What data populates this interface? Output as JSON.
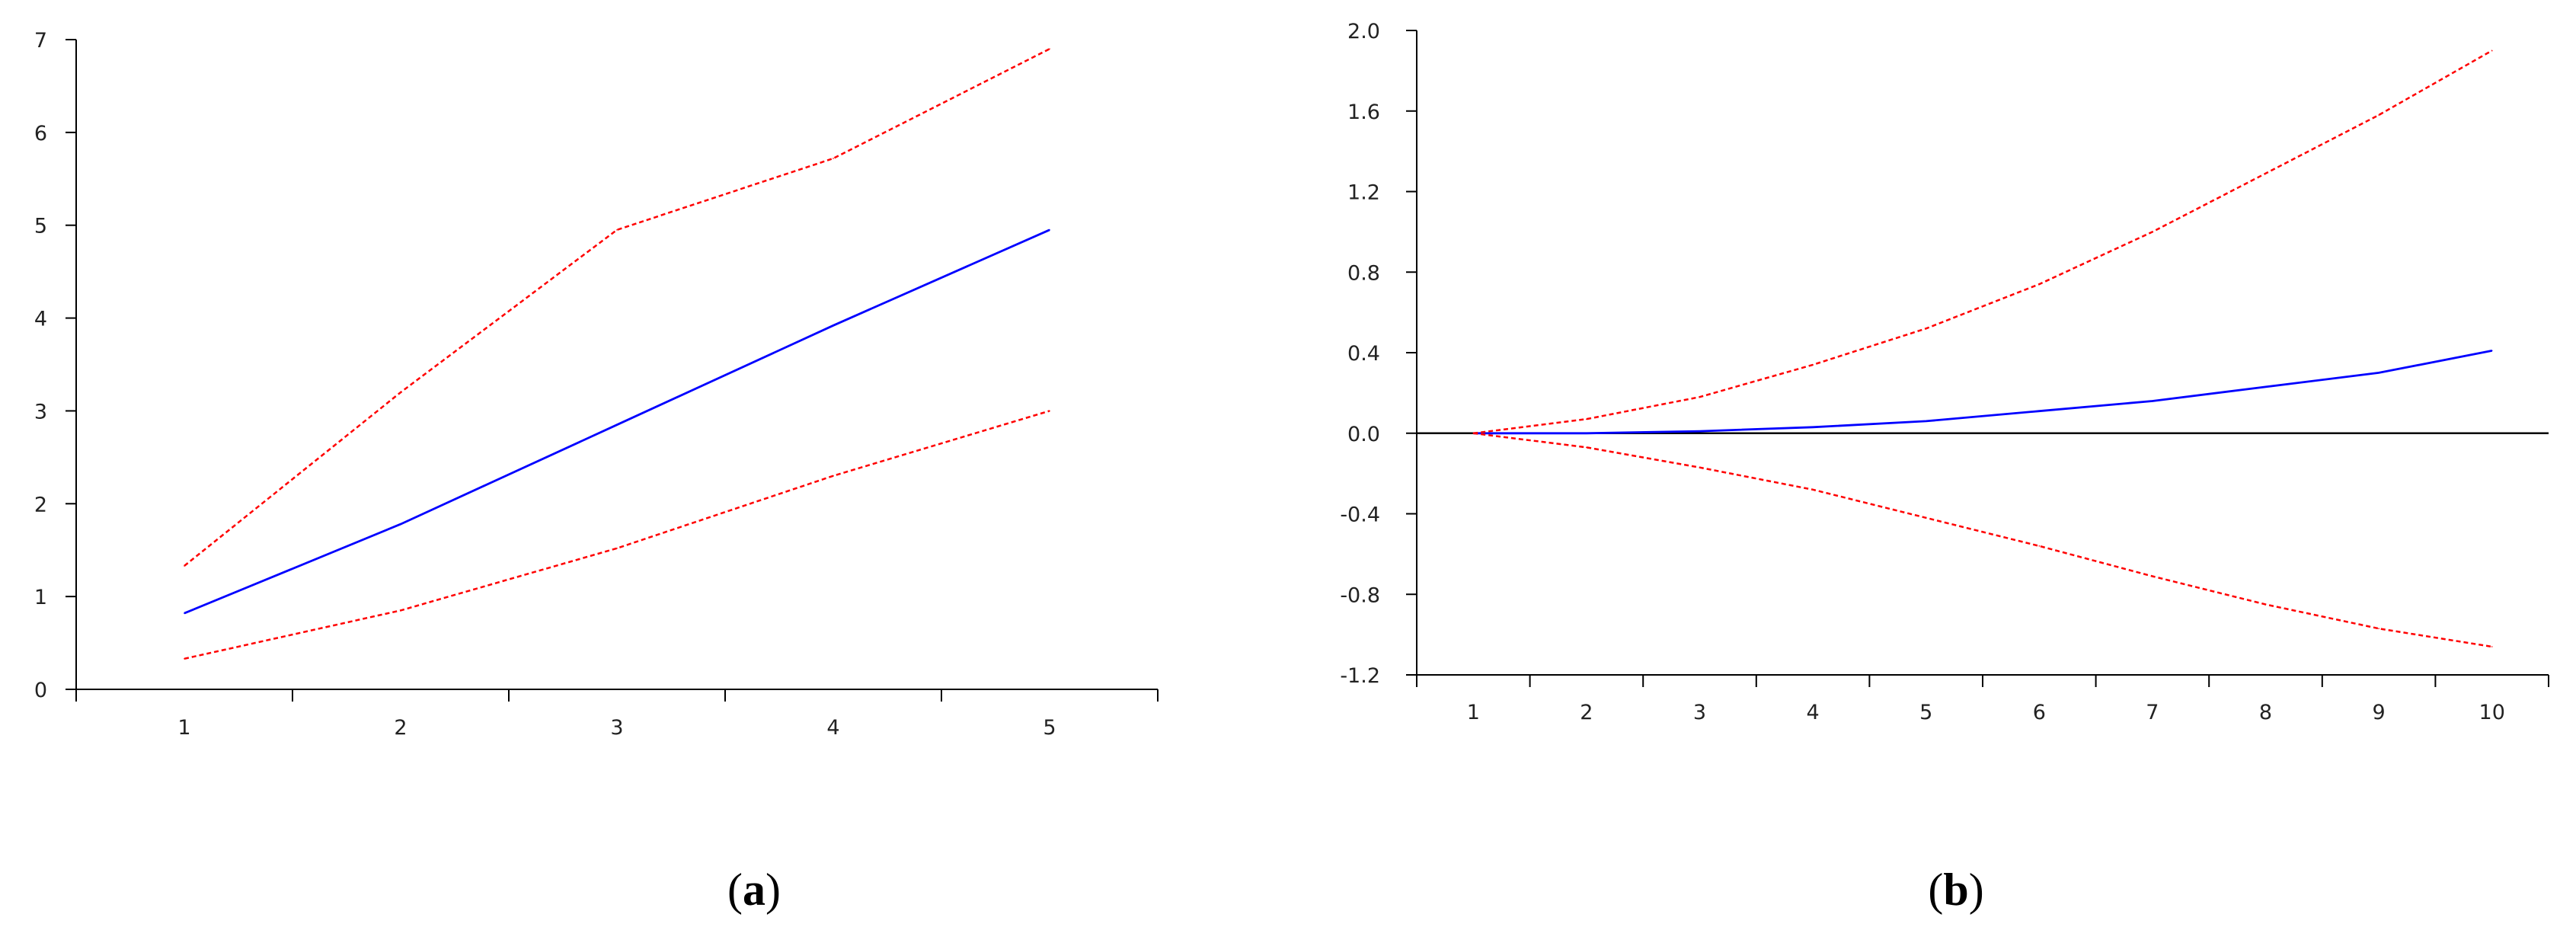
{
  "colors": {
    "response": "#0000ff",
    "bands": "#ff0000",
    "zero_line": "#000000",
    "axis": "#000000",
    "tick_text": "#222222"
  },
  "chart_data": [
    {
      "type": "line",
      "panel_label": {
        "open": "(",
        "letter": "a",
        "close": ")"
      },
      "x": [
        1,
        2,
        3,
        4,
        5
      ],
      "xlim": [
        0.5,
        5.5
      ],
      "ylim": [
        0,
        7
      ],
      "x_ticks": [
        "1",
        "2",
        "3",
        "4",
        "5"
      ],
      "y_ticks": [
        "0",
        "1",
        "2",
        "3",
        "4",
        "5",
        "6",
        "7"
      ],
      "y_tick_values": [
        0,
        1,
        2,
        3,
        4,
        5,
        6,
        7
      ],
      "zero_line": false,
      "grid": false,
      "series": [
        {
          "role": "response",
          "style": "solid",
          "color": "#0000ff",
          "values": [
            0.82,
            1.78,
            2.85,
            3.92,
            4.95
          ]
        },
        {
          "role": "upper-band",
          "style": "dashed",
          "color": "#ff0000",
          "values": [
            1.33,
            3.2,
            4.95,
            5.72,
            6.9
          ]
        },
        {
          "role": "lower-band",
          "style": "dashed",
          "color": "#ff0000",
          "values": [
            0.33,
            0.85,
            1.52,
            2.3,
            3.0
          ]
        }
      ]
    },
    {
      "type": "line",
      "panel_label": {
        "open": "(",
        "letter": "b",
        "close": ")"
      },
      "x": [
        1,
        2,
        3,
        4,
        5,
        6,
        7,
        8,
        9,
        10
      ],
      "xlim": [
        0.5,
        10.5
      ],
      "ylim": [
        -1.2,
        2.0
      ],
      "x_ticks": [
        "1",
        "2",
        "3",
        "4",
        "5",
        "6",
        "7",
        "8",
        "9",
        "10"
      ],
      "y_ticks": [
        "2.0",
        "1.6",
        "1.2",
        "0.8",
        "0.4",
        "0.0",
        "-0.4",
        "-0.8",
        "-1.2"
      ],
      "y_tick_values": [
        2.0,
        1.6,
        1.2,
        0.8,
        0.4,
        0.0,
        -0.4,
        -0.8,
        -1.2
      ],
      "zero_line": true,
      "grid": false,
      "series": [
        {
          "role": "response",
          "style": "solid",
          "color": "#0000ff",
          "values": [
            0.0,
            0.0,
            0.01,
            0.03,
            0.06,
            0.11,
            0.16,
            0.23,
            0.3,
            0.41
          ]
        },
        {
          "role": "upper-band",
          "style": "dashed",
          "color": "#ff0000",
          "values": [
            0.0,
            0.07,
            0.18,
            0.34,
            0.52,
            0.74,
            1.0,
            1.29,
            1.58,
            1.9
          ]
        },
        {
          "role": "lower-band",
          "style": "dashed",
          "color": "#ff0000",
          "values": [
            0.0,
            -0.07,
            -0.17,
            -0.28,
            -0.42,
            -0.56,
            -0.71,
            -0.85,
            -0.97,
            -1.06
          ]
        }
      ]
    }
  ]
}
